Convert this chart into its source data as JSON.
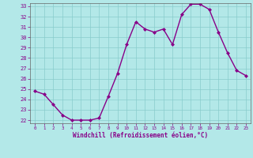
{
  "hours": [
    0,
    1,
    2,
    3,
    4,
    5,
    6,
    7,
    8,
    9,
    10,
    11,
    12,
    13,
    14,
    15,
    16,
    17,
    18,
    19,
    20,
    21,
    22,
    23
  ],
  "values": [
    24.8,
    24.5,
    23.5,
    22.5,
    22.0,
    22.0,
    22.0,
    22.2,
    24.3,
    26.5,
    29.3,
    31.5,
    30.8,
    30.5,
    30.8,
    29.3,
    32.2,
    33.2,
    33.2,
    32.7,
    30.5,
    28.5,
    26.8,
    26.3
  ],
  "line_color": "#880088",
  "marker_color": "#880088",
  "bg_color": "#b3e8e8",
  "grid_color": "#88cccc",
  "xlabel": "Windchill (Refroidissement éolien,°C)",
  "xlabel_color": "#880088",
  "tick_color": "#880088",
  "ylim_min": 22,
  "ylim_max": 33,
  "xlim_min": 0,
  "xlim_max": 23,
  "yticks": [
    22,
    23,
    24,
    25,
    26,
    27,
    28,
    29,
    30,
    31,
    32,
    33
  ],
  "xticks": [
    0,
    1,
    2,
    3,
    4,
    5,
    6,
    7,
    8,
    9,
    10,
    11,
    12,
    13,
    14,
    15,
    16,
    17,
    18,
    19,
    20,
    21,
    22,
    23
  ]
}
